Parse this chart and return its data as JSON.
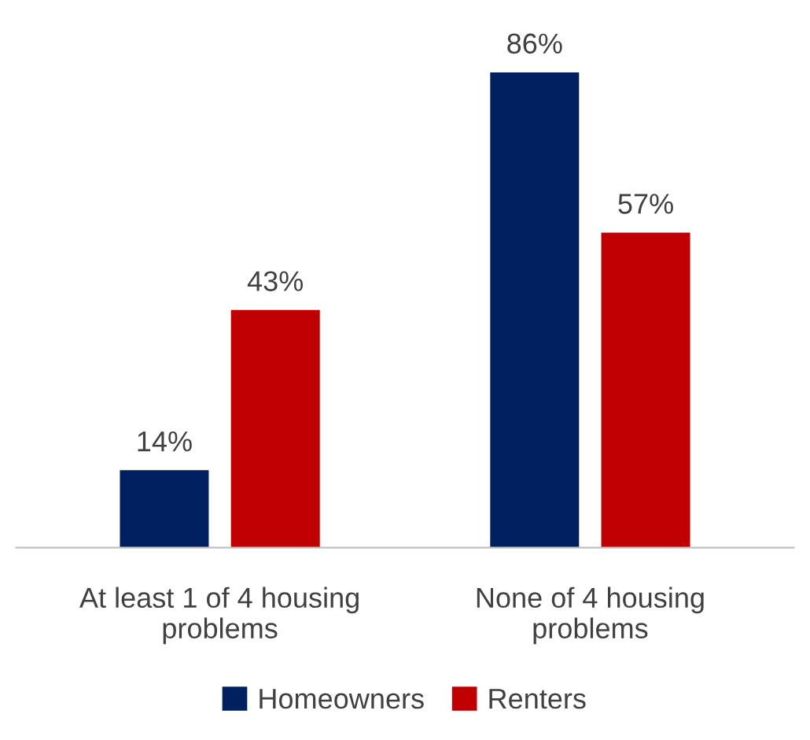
{
  "chart_data": {
    "type": "bar",
    "categories": [
      "At least 1 of 4 housing\nproblems",
      "None of 4 housing\nproblems"
    ],
    "series": [
      {
        "name": "Homeowners",
        "color": "#002060",
        "values": [
          14,
          86
        ],
        "value_labels": [
          "14%",
          "86%"
        ]
      },
      {
        "name": "Renters",
        "color": "#c00000",
        "values": [
          43,
          57
        ],
        "value_labels": [
          "43%",
          "57%"
        ]
      }
    ],
    "legend": "bottom",
    "grid": false
  }
}
